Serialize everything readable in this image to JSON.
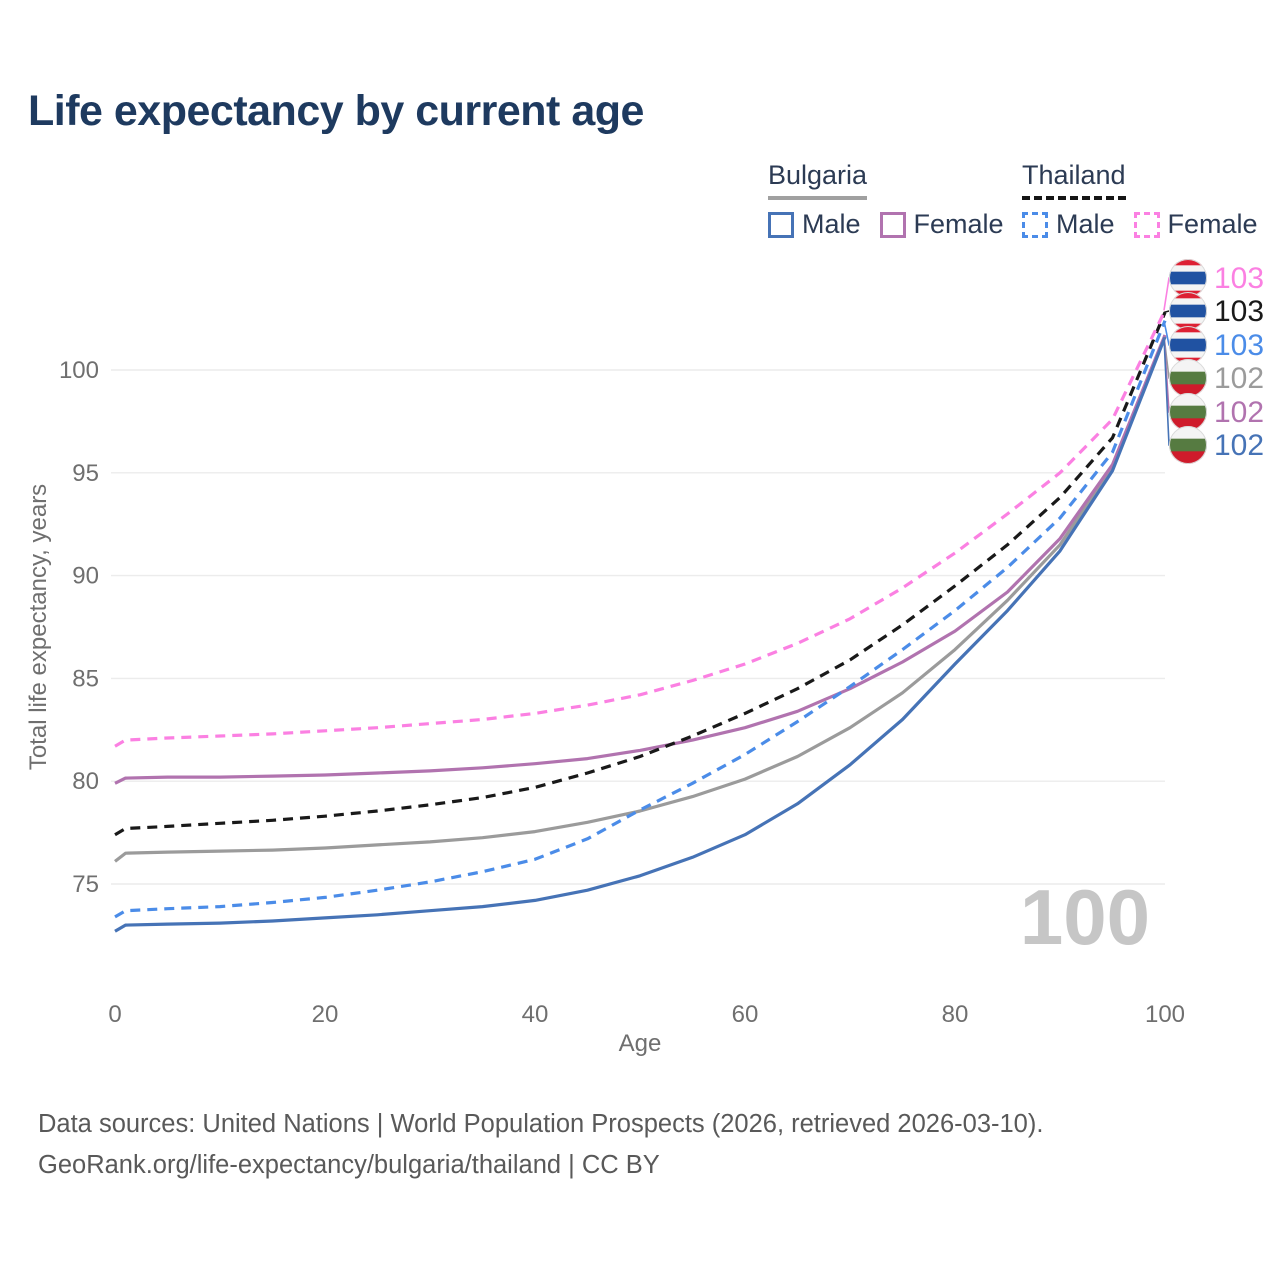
{
  "title": "Life expectancy by current age",
  "legend": {
    "bulgaria": {
      "label": "Bulgaria",
      "male": "Male",
      "female": "Female"
    },
    "thailand": {
      "label": "Thailand",
      "male": "Male",
      "female": "Female"
    }
  },
  "age_indicator": "100",
  "footer": {
    "line1": "Data sources: United Nations | World Population Prospects (2026, retrieved 2026-03-10).",
    "line2": "GeoRank.org/life-expectancy/bulgaria/thailand | CC BY"
  },
  "colors": {
    "title": "#1e3a5f",
    "legend_text": "#2c3b54",
    "axis_text": "#6f6f6f",
    "grid": "#ececec",
    "watermark": "#c6c6c6",
    "bulgaria_underline": "#a0a0a0",
    "thailand_underline": "#151515"
  },
  "chart_data": {
    "type": "line",
    "title": "Life expectancy by current age",
    "xlabel": "Age",
    "ylabel": "Total life expectancy, years",
    "xlim": [
      0,
      100
    ],
    "ylim": [
      72,
      104
    ],
    "xticks": [
      0,
      20,
      40,
      60,
      80,
      100
    ],
    "yticks": [
      75,
      80,
      85,
      90,
      95,
      100
    ],
    "grid": "horizontal",
    "legend_position": "top-right",
    "x": [
      0,
      1,
      5,
      10,
      15,
      20,
      25,
      30,
      35,
      40,
      45,
      50,
      55,
      60,
      65,
      70,
      75,
      80,
      85,
      90,
      95,
      100
    ],
    "series": [
      {
        "name": "Thailand Female",
        "country": "thailand",
        "sex": "female",
        "line": "dashed",
        "color": "#fb80e2",
        "end_label": "103",
        "values": [
          81.7,
          82.0,
          82.1,
          82.2,
          82.3,
          82.45,
          82.6,
          82.8,
          83.0,
          83.3,
          83.7,
          84.2,
          84.9,
          85.7,
          86.7,
          87.9,
          89.4,
          91.1,
          93.0,
          95.0,
          97.6,
          102.9
        ]
      },
      {
        "name": "Thailand Both sexes",
        "country": "thailand",
        "sex": "all",
        "line": "dashed",
        "color": "#191919",
        "end_label": "103",
        "values": [
          77.4,
          77.7,
          77.8,
          77.95,
          78.1,
          78.3,
          78.55,
          78.85,
          79.2,
          79.7,
          80.4,
          81.2,
          82.2,
          83.3,
          84.5,
          85.9,
          87.6,
          89.5,
          91.5,
          93.8,
          96.7,
          102.8
        ]
      },
      {
        "name": "Thailand Male",
        "country": "thailand",
        "sex": "male",
        "line": "dashed",
        "color": "#4b8ce8",
        "end_label": "103",
        "values": [
          73.4,
          73.7,
          73.8,
          73.9,
          74.1,
          74.35,
          74.7,
          75.1,
          75.6,
          76.2,
          77.2,
          78.6,
          79.9,
          81.3,
          82.9,
          84.6,
          86.4,
          88.3,
          90.4,
          92.8,
          96.0,
          102.4
        ]
      },
      {
        "name": "Bulgaria Both sexes",
        "country": "bulgaria",
        "sex": "all",
        "line": "solid",
        "color": "#9b9b9b",
        "end_label": "102",
        "values": [
          76.1,
          76.5,
          76.55,
          76.6,
          76.65,
          76.75,
          76.9,
          77.05,
          77.25,
          77.55,
          78.0,
          78.55,
          79.25,
          80.1,
          81.2,
          82.6,
          84.3,
          86.4,
          88.8,
          91.5,
          95.3,
          101.65
        ]
      },
      {
        "name": "Bulgaria Female",
        "country": "bulgaria",
        "sex": "female",
        "line": "solid",
        "color": "#b173af",
        "end_label": "102",
        "values": [
          79.9,
          80.15,
          80.2,
          80.2,
          80.25,
          80.3,
          80.4,
          80.5,
          80.65,
          80.85,
          81.1,
          81.5,
          82.0,
          82.6,
          83.4,
          84.5,
          85.8,
          87.3,
          89.2,
          91.8,
          95.4,
          101.7
        ]
      },
      {
        "name": "Bulgaria Male",
        "country": "bulgaria",
        "sex": "male",
        "line": "solid",
        "color": "#4673b6",
        "end_label": "102",
        "values": [
          72.7,
          73.0,
          73.05,
          73.1,
          73.2,
          73.35,
          73.5,
          73.7,
          73.9,
          74.2,
          74.7,
          75.4,
          76.3,
          77.4,
          78.9,
          80.8,
          83.0,
          85.7,
          88.3,
          91.2,
          95.1,
          101.6
        ]
      }
    ],
    "flags": {
      "thailand": [
        {
          "c": "#dd2033",
          "h": 0.1667
        },
        {
          "c": "#f4f4f4",
          "h": 0.1667
        },
        {
          "c": "#2052a2",
          "h": 0.3332
        },
        {
          "c": "#f4f4f4",
          "h": 0.1667
        },
        {
          "c": "#dd2033",
          "h": 0.1667
        }
      ],
      "bulgaria": [
        {
          "c": "#f4f4f4",
          "h": 0.3333
        },
        {
          "c": "#567b41",
          "h": 0.3334
        },
        {
          "c": "#cf1b2b",
          "h": 0.3333
        }
      ]
    }
  }
}
